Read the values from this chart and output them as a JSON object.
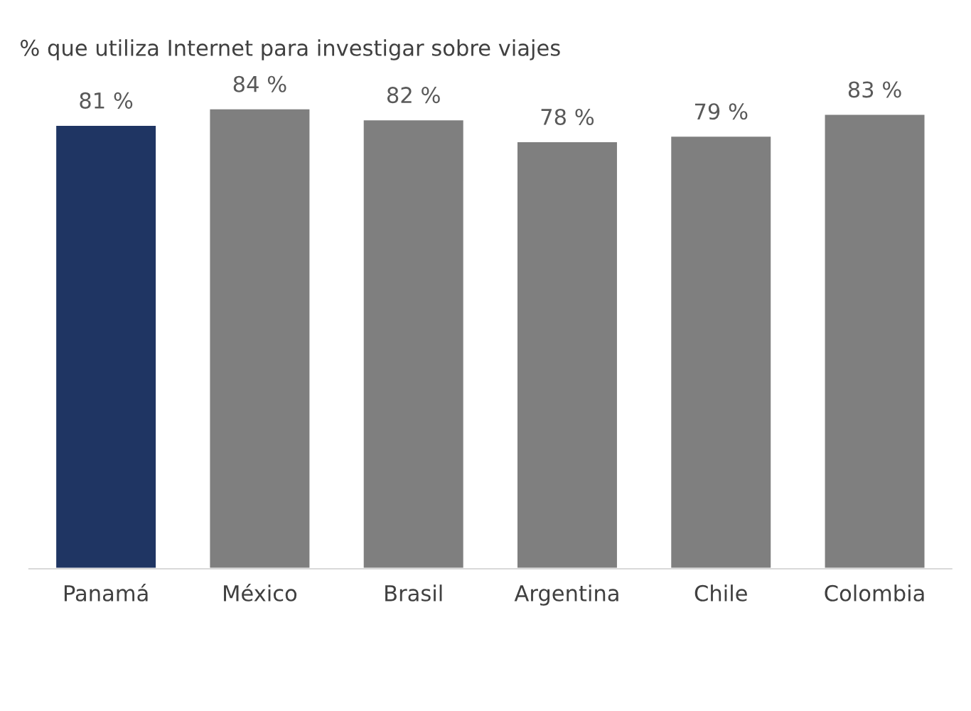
{
  "chart_data": {
    "type": "bar",
    "title": "% que utiliza Internet para investigar sobre viajes",
    "categories": [
      "Panamá",
      "México",
      "Brasil",
      "Argentina",
      "Chile",
      "Colombia"
    ],
    "values": [
      81,
      84,
      82,
      78,
      79,
      83
    ],
    "colors": [
      "#1f3563",
      "#7f7f7f",
      "#7f7f7f",
      "#7f7f7f",
      "#7f7f7f",
      "#7f7f7f"
    ],
    "value_labels": [
      "81 %",
      "84 %",
      "82 %",
      "78 %",
      "79 %",
      "83 %"
    ],
    "grid": false,
    "legend": false
  }
}
